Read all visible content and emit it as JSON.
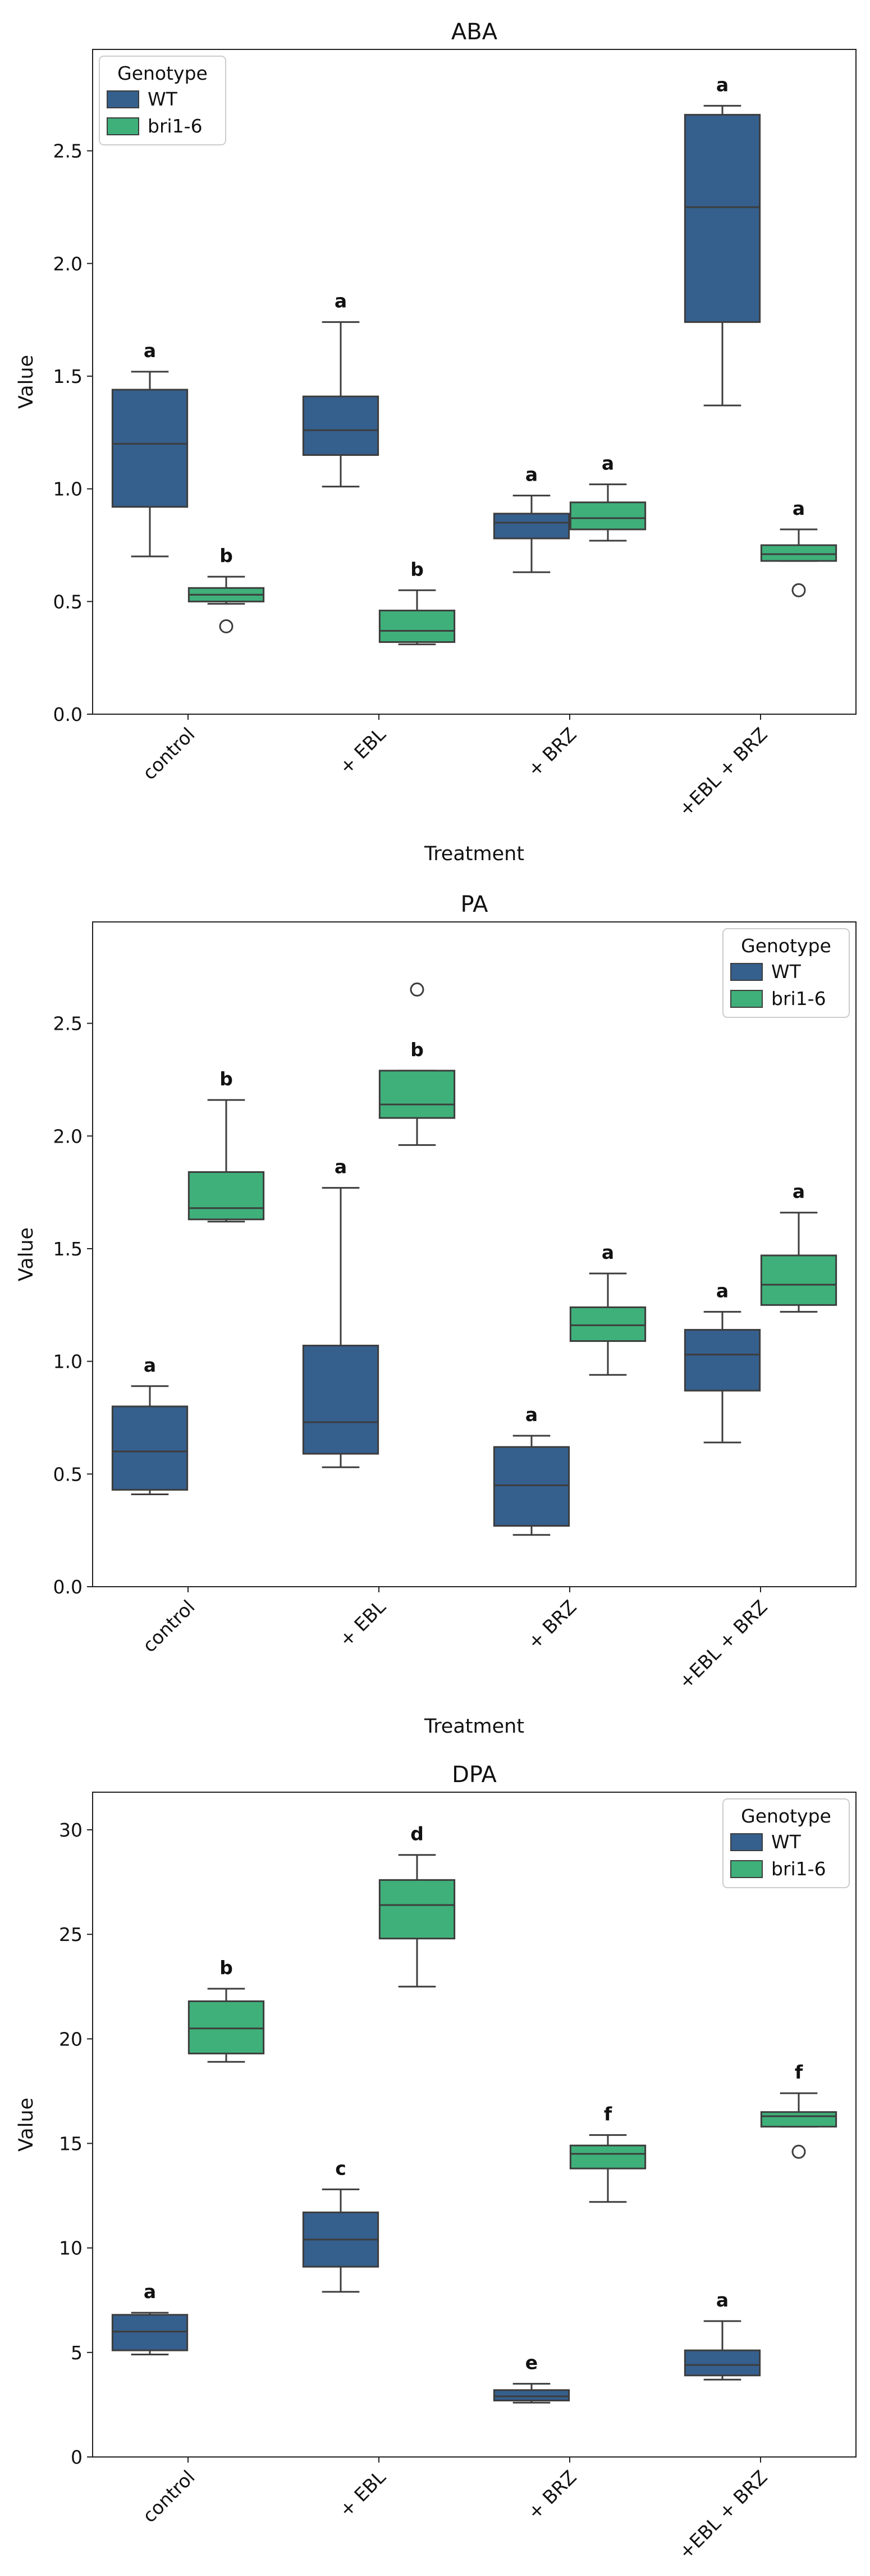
{
  "chart_data": [
    {
      "type": "box",
      "title": "ABA",
      "xlabel": "Treatment",
      "ylabel": "Value",
      "ylim": [
        0,
        2.95
      ],
      "yticks": [
        0.0,
        0.5,
        1.0,
        1.5,
        2.0,
        2.5
      ],
      "ytick_labels": [
        "0.0",
        "0.5",
        "1.0",
        "1.5",
        "2.0",
        "2.5"
      ],
      "categories": [
        "control",
        "+ EBL",
        "+ BRZ",
        "+EBL + BRZ"
      ],
      "legend": {
        "title": "Genotype",
        "position": "top-left",
        "entries": [
          "WT",
          "bri1-6"
        ]
      },
      "series": [
        {
          "name": "WT",
          "color": "#355f8d",
          "boxes": [
            {
              "whislo": 0.7,
              "q1": 0.92,
              "med": 1.2,
              "q3": 1.44,
              "whishi": 1.52,
              "fliers": [],
              "letter": "a"
            },
            {
              "whislo": 1.01,
              "q1": 1.15,
              "med": 1.26,
              "q3": 1.41,
              "whishi": 1.74,
              "fliers": [],
              "letter": "a"
            },
            {
              "whislo": 0.63,
              "q1": 0.78,
              "med": 0.85,
              "q3": 0.89,
              "whishi": 0.97,
              "fliers": [],
              "letter": "a"
            },
            {
              "whislo": 1.37,
              "q1": 1.74,
              "med": 2.25,
              "q3": 2.66,
              "whishi": 2.7,
              "fliers": [],
              "letter": "a"
            }
          ]
        },
        {
          "name": "bri1-6",
          "color": "#3fb07a",
          "boxes": [
            {
              "whislo": 0.49,
              "q1": 0.5,
              "med": 0.53,
              "q3": 0.56,
              "whishi": 0.61,
              "fliers": [
                0.39
              ],
              "letter": "b"
            },
            {
              "whislo": 0.31,
              "q1": 0.32,
              "med": 0.37,
              "q3": 0.46,
              "whishi": 0.55,
              "fliers": [],
              "letter": "b"
            },
            {
              "whislo": 0.77,
              "q1": 0.82,
              "med": 0.87,
              "q3": 0.94,
              "whishi": 1.02,
              "fliers": [],
              "letter": "a"
            },
            {
              "whislo": 0.68,
              "q1": 0.68,
              "med": 0.71,
              "q3": 0.75,
              "whishi": 0.82,
              "fliers": [
                0.55
              ],
              "letter": "a"
            }
          ]
        }
      ]
    },
    {
      "type": "box",
      "title": "PA",
      "xlabel": "Treatment",
      "ylabel": "Value",
      "ylim": [
        0,
        2.95
      ],
      "yticks": [
        0.0,
        0.5,
        1.0,
        1.5,
        2.0,
        2.5
      ],
      "ytick_labels": [
        "0.0",
        "0.5",
        "1.0",
        "1.5",
        "2.0",
        "2.5"
      ],
      "categories": [
        "control",
        "+ EBL",
        "+ BRZ",
        "+EBL + BRZ"
      ],
      "legend": {
        "title": "Genotype",
        "position": "top-right",
        "entries": [
          "WT",
          "bri1-6"
        ]
      },
      "series": [
        {
          "name": "WT",
          "color": "#355f8d",
          "boxes": [
            {
              "whislo": 0.41,
              "q1": 0.43,
              "med": 0.6,
              "q3": 0.8,
              "whishi": 0.89,
              "fliers": [],
              "letter": "a"
            },
            {
              "whislo": 0.53,
              "q1": 0.59,
              "med": 0.73,
              "q3": 1.07,
              "whishi": 1.77,
              "fliers": [],
              "letter": "a"
            },
            {
              "whislo": 0.23,
              "q1": 0.27,
              "med": 0.45,
              "q3": 0.62,
              "whishi": 0.67,
              "fliers": [],
              "letter": "a"
            },
            {
              "whislo": 0.64,
              "q1": 0.87,
              "med": 1.03,
              "q3": 1.14,
              "whishi": 1.22,
              "fliers": [],
              "letter": "a"
            }
          ]
        },
        {
          "name": "bri1-6",
          "color": "#3fb07a",
          "boxes": [
            {
              "whislo": 1.62,
              "q1": 1.63,
              "med": 1.68,
              "q3": 1.84,
              "whishi": 2.16,
              "fliers": [],
              "letter": "b"
            },
            {
              "whislo": 1.96,
              "q1": 2.08,
              "med": 2.14,
              "q3": 2.29,
              "whishi": 2.29,
              "fliers": [
                2.65
              ],
              "letter": "b"
            },
            {
              "whislo": 0.94,
              "q1": 1.09,
              "med": 1.16,
              "q3": 1.24,
              "whishi": 1.39,
              "fliers": [],
              "letter": "a"
            },
            {
              "whislo": 1.22,
              "q1": 1.25,
              "med": 1.34,
              "q3": 1.47,
              "whishi": 1.66,
              "fliers": [],
              "letter": "a"
            }
          ]
        }
      ]
    },
    {
      "type": "box",
      "title": "DPA",
      "xlabel": "Treatment",
      "ylabel": "Value",
      "ylim": [
        0,
        31.8
      ],
      "yticks": [
        0,
        5,
        10,
        15,
        20,
        25,
        30
      ],
      "ytick_labels": [
        "0",
        "5",
        "10",
        "15",
        "20",
        "25",
        "30"
      ],
      "categories": [
        "control",
        "+ EBL",
        "+ BRZ",
        "+EBL + BRZ"
      ],
      "legend": {
        "title": "Genotype",
        "position": "top-right",
        "entries": [
          "WT",
          "bri1-6"
        ]
      },
      "series": [
        {
          "name": "WT",
          "color": "#355f8d",
          "boxes": [
            {
              "whislo": 4.9,
              "q1": 5.1,
              "med": 6.0,
              "q3": 6.8,
              "whishi": 6.9,
              "fliers": [],
              "letter": "a"
            },
            {
              "whislo": 7.9,
              "q1": 9.1,
              "med": 10.4,
              "q3": 11.7,
              "whishi": 12.8,
              "fliers": [],
              "letter": "c"
            },
            {
              "whislo": 2.6,
              "q1": 2.7,
              "med": 2.9,
              "q3": 3.2,
              "whishi": 3.5,
              "fliers": [],
              "letter": "e"
            },
            {
              "whislo": 3.7,
              "q1": 3.9,
              "med": 4.4,
              "q3": 5.1,
              "whishi": 6.5,
              "fliers": [],
              "letter": "a"
            }
          ]
        },
        {
          "name": "bri1-6",
          "color": "#3fb07a",
          "boxes": [
            {
              "whislo": 18.9,
              "q1": 19.3,
              "med": 20.5,
              "q3": 21.8,
              "whishi": 22.4,
              "fliers": [],
              "letter": "b"
            },
            {
              "whislo": 22.5,
              "q1": 24.8,
              "med": 26.4,
              "q3": 27.6,
              "whishi": 28.8,
              "fliers": [],
              "letter": "d"
            },
            {
              "whislo": 12.2,
              "q1": 13.8,
              "med": 14.5,
              "q3": 14.9,
              "whishi": 15.4,
              "fliers": [],
              "letter": "f"
            },
            {
              "whislo": 15.8,
              "q1": 15.8,
              "med": 16.3,
              "q3": 16.5,
              "whishi": 17.4,
              "fliers": [
                14.6
              ],
              "letter": "f"
            }
          ]
        }
      ]
    }
  ]
}
